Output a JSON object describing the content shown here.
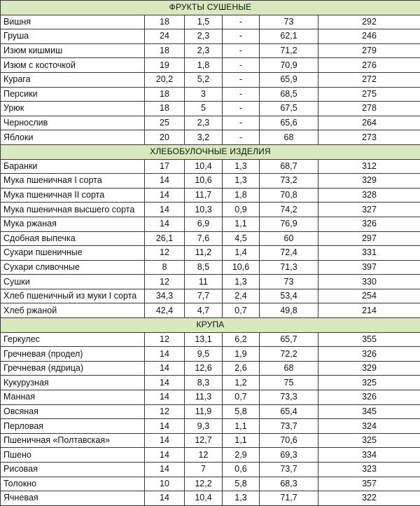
{
  "sections": [
    {
      "title": "ФРУКТЫ СУШЕНЫЕ",
      "rows": [
        [
          "Вишня",
          "18",
          "1,5",
          "-",
          "73",
          "292"
        ],
        [
          "Груша",
          "24",
          "2,3",
          "-",
          "62,1",
          "246"
        ],
        [
          "Изюм кишмиш",
          "18",
          "2,3",
          "-",
          "71,2",
          "279"
        ],
        [
          "Изюм с косточкой",
          "19",
          "1,8",
          "-",
          "70,9",
          "276"
        ],
        [
          "Курага",
          "20,2",
          "5,2",
          "-",
          "65,9",
          "272"
        ],
        [
          "Персики",
          "18",
          "3",
          "-",
          "68,5",
          "275"
        ],
        [
          "Урюк",
          "18",
          "5",
          "-",
          "67,5",
          "278"
        ],
        [
          "Чернослив",
          "25",
          "2,3",
          "-",
          "65,6",
          "264"
        ],
        [
          "Яблоки",
          "20",
          "3,2",
          "-",
          "68",
          "273"
        ]
      ]
    },
    {
      "title": "ХЛЕБОБУЛОЧНЫЕ ИЗДЕЛИЯ",
      "rows": [
        [
          "Баранки",
          "17",
          "10,4",
          "1,3",
          "68,7",
          "312"
        ],
        [
          "Мука пшеничная I сорта",
          "14",
          "10,6",
          "1,3",
          "73,2",
          "329"
        ],
        [
          "Мука пшеничная II сорта",
          "14",
          "11,7",
          "1,8",
          "70,8",
          "328"
        ],
        [
          "Мука пшеничная высшего сорта",
          "14",
          "10,3",
          "0,9",
          "74,2",
          "327"
        ],
        [
          "Мука ржаная",
          "14",
          "6,9",
          "1,1",
          "76,9",
          "326"
        ],
        [
          "Сдобная выпечка",
          "26,1",
          "7,6",
          "4,5",
          "60",
          "297"
        ],
        [
          "Сухари пшеничные",
          "12",
          "11,2",
          "1,4",
          "72,4",
          "331"
        ],
        [
          "Сухари сливочные",
          "8",
          "8,5",
          "10,6",
          "71,3",
          "397"
        ],
        [
          "Сушки",
          "12",
          "11",
          "1,3",
          "73",
          "330"
        ],
        [
          "Хлеб пшеничный из муки I сорта",
          "34,3",
          "7,7",
          "2,4",
          "53,4",
          "254"
        ],
        [
          "Хлеб ржаной",
          "42,4",
          "4,7",
          "0,7",
          "49,8",
          "214"
        ]
      ]
    },
    {
      "title": "КРУПА",
      "rows": [
        [
          "Геркулес",
          "12",
          "13,1",
          "6,2",
          "65,7",
          "355"
        ],
        [
          "Гречневая (продел)",
          "14",
          "9,5",
          "1,9",
          "72,2",
          "326"
        ],
        [
          "Гречневая (ядрица)",
          "14",
          "12,6",
          "2,6",
          "68",
          "329"
        ],
        [
          "Кукурузная",
          "14",
          "8,3",
          "1,2",
          "75",
          "325"
        ],
        [
          "Манная",
          "14",
          "11,3",
          "0,7",
          "73,3",
          "326"
        ],
        [
          "Овсяная",
          "12",
          "11,9",
          "5,8",
          "65,4",
          "345"
        ],
        [
          "Перловая",
          "14",
          "9,3",
          "1,1",
          "73,7",
          "324"
        ],
        [
          "Пшеничная «Полтавская»",
          "14",
          "12,7",
          "1,1",
          "70,6",
          "325"
        ],
        [
          "Пшено",
          "14",
          "12",
          "2,9",
          "69,3",
          "334"
        ],
        [
          "Рисовая",
          "14",
          "7",
          "0,6",
          "73,7",
          "323"
        ],
        [
          "Толокно",
          "10",
          "12,2",
          "5,8",
          "68,3",
          "357"
        ],
        [
          "Ячневая",
          "14",
          "10,4",
          "1,3",
          "71,7",
          "322"
        ]
      ]
    }
  ]
}
